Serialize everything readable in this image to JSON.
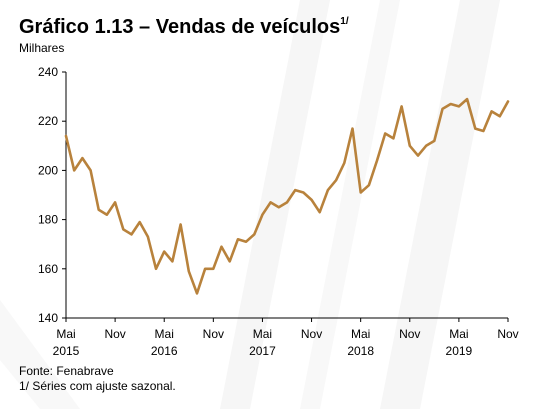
{
  "title": "Gráfico 1.13 – Vendas de veículos",
  "title_sup": "1/",
  "unit": "Milhares",
  "source": "Fonte: Fenabrave",
  "note": "1/ Séries com ajuste sazonal.",
  "colors": {
    "line": "#b8823c",
    "axis": "#000000",
    "background": "#ffffff"
  },
  "chart_data": {
    "type": "line",
    "title": "Gráfico 1.13 – Vendas de veículos",
    "ylabel": "Milhares",
    "ylim": [
      140,
      240
    ],
    "yticks": [
      140,
      160,
      180,
      200,
      220,
      240
    ],
    "grid": false,
    "xticks": [
      {
        "index": 0,
        "label": "Mai",
        "year": "2015"
      },
      {
        "index": 6,
        "label": "Nov",
        "year": ""
      },
      {
        "index": 12,
        "label": "Mai",
        "year": "2016"
      },
      {
        "index": 18,
        "label": "Nov",
        "year": ""
      },
      {
        "index": 24,
        "label": "Mai",
        "year": "2017"
      },
      {
        "index": 30,
        "label": "Nov",
        "year": ""
      },
      {
        "index": 36,
        "label": "Mai",
        "year": "2018"
      },
      {
        "index": 42,
        "label": "Nov",
        "year": ""
      },
      {
        "index": 48,
        "label": "Mai",
        "year": "2019"
      },
      {
        "index": 54,
        "label": "Nov",
        "year": ""
      }
    ],
    "x_start": "2015-05",
    "x_end": "2019-11",
    "series": [
      {
        "values": [
          214,
          200,
          205,
          200,
          184,
          182,
          187,
          176,
          174,
          179,
          173,
          160,
          167,
          163,
          178,
          159,
          150,
          160,
          160,
          169,
          163,
          172,
          171,
          174,
          182,
          187,
          185,
          187,
          192,
          191,
          188,
          183,
          192,
          196,
          203,
          217,
          191,
          194,
          204,
          215,
          213,
          226,
          210,
          206,
          210,
          212,
          225,
          227,
          226,
          229,
          217,
          216,
          224,
          222,
          228
        ]
      }
    ]
  }
}
